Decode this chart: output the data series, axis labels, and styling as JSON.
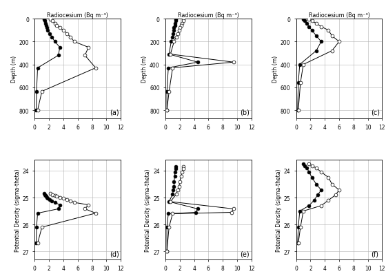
{
  "title_x": "Radiocesium (Bq m⁻³)",
  "ylabel_top": "Depth (m)",
  "ylabel_bot": "Potential Density (sigma-theta)",
  "panels": [
    "(a)",
    "(b)",
    "(c)",
    "(d)",
    "(e)",
    "(f)"
  ],
  "xlim": [
    0,
    12
  ],
  "xticks": [
    0,
    2,
    4,
    6,
    8,
    10,
    12
  ],
  "ylim_depth": [
    0,
    870
  ],
  "yticks_depth": [
    0,
    200,
    400,
    600,
    800
  ],
  "ylim_density": [
    23.6,
    27.3
  ],
  "yticks_density": [
    24,
    25,
    26,
    27
  ],
  "a_cs134_depth": [
    5,
    20,
    40,
    60,
    80,
    100,
    130,
    160,
    200,
    250,
    320,
    430,
    635,
    800
  ],
  "a_cs134_val": [
    1.3,
    1.4,
    1.5,
    1.6,
    1.7,
    1.8,
    2.1,
    2.4,
    2.8,
    3.5,
    3.3,
    0.4,
    0.25,
    0.2
  ],
  "a_cs137_depth": [
    5,
    20,
    40,
    60,
    80,
    100,
    130,
    160,
    200,
    250,
    320,
    430,
    635,
    800
  ],
  "a_cs137_val": [
    2.2,
    2.5,
    2.8,
    3.0,
    3.5,
    4.0,
    4.5,
    5.0,
    5.5,
    7.5,
    7.0,
    8.5,
    1.0,
    0.4
  ],
  "b_cs134_depth": [
    5,
    20,
    40,
    60,
    80,
    100,
    130,
    160,
    200,
    310,
    380,
    430,
    640,
    800
  ],
  "b_cs134_val": [
    1.4,
    1.4,
    1.3,
    1.3,
    1.2,
    1.2,
    1.1,
    1.0,
    0.8,
    0.5,
    4.5,
    0.4,
    0.2,
    0.2
  ],
  "b_cs137_depth": [
    5,
    20,
    40,
    60,
    80,
    100,
    130,
    160,
    200,
    310,
    380,
    430,
    640,
    800
  ],
  "b_cs137_val": [
    2.5,
    2.5,
    2.3,
    2.2,
    2.0,
    1.9,
    1.7,
    1.5,
    1.2,
    0.7,
    9.5,
    1.0,
    0.5,
    0.2
  ],
  "c_cs134_depth": [
    5,
    20,
    40,
    70,
    100,
    150,
    200,
    280,
    400,
    560,
    800
  ],
  "c_cs134_val": [
    1.0,
    1.2,
    1.5,
    1.8,
    2.2,
    2.8,
    3.5,
    2.8,
    0.5,
    0.3,
    0.2
  ],
  "c_cs137_depth": [
    5,
    20,
    40,
    70,
    100,
    150,
    200,
    280,
    400,
    560,
    800
  ],
  "c_cs137_val": [
    1.8,
    2.2,
    2.8,
    3.5,
    4.5,
    5.0,
    6.0,
    5.0,
    1.0,
    0.6,
    0.3
  ],
  "d_cs134_sig": [
    24.85,
    24.9,
    24.93,
    24.96,
    24.99,
    25.02,
    25.07,
    25.12,
    25.18,
    25.27,
    25.42,
    25.58,
    26.1,
    26.7
  ],
  "d_cs134_val": [
    1.3,
    1.4,
    1.5,
    1.6,
    1.7,
    1.8,
    2.1,
    2.4,
    2.8,
    3.5,
    3.3,
    0.4,
    0.25,
    0.2
  ],
  "d_cs137_sig": [
    24.85,
    24.9,
    24.93,
    24.96,
    24.99,
    25.02,
    25.07,
    25.12,
    25.18,
    25.27,
    25.42,
    25.58,
    26.1,
    26.7
  ],
  "d_cs137_val": [
    2.2,
    2.5,
    2.8,
    3.0,
    3.5,
    4.0,
    4.5,
    5.0,
    5.5,
    7.5,
    7.0,
    8.5,
    1.0,
    0.4
  ],
  "e_cs134_sig": [
    23.85,
    23.92,
    24.05,
    24.2,
    24.4,
    24.58,
    24.72,
    24.88,
    25.15,
    25.42,
    25.55,
    25.6,
    26.1,
    27.0
  ],
  "e_cs134_val": [
    1.4,
    1.4,
    1.3,
    1.3,
    1.2,
    1.2,
    1.1,
    1.0,
    0.5,
    4.5,
    4.2,
    0.4,
    0.2,
    0.2
  ],
  "e_cs137_sig": [
    23.85,
    23.92,
    24.05,
    24.2,
    24.4,
    24.58,
    24.72,
    24.88,
    25.15,
    25.42,
    25.55,
    25.6,
    26.1,
    27.0
  ],
  "e_cs137_val": [
    2.5,
    2.5,
    2.3,
    2.2,
    2.0,
    1.9,
    1.7,
    1.5,
    0.7,
    9.5,
    9.2,
    1.0,
    0.5,
    0.2
  ],
  "f_cs134_sig": [
    23.75,
    23.82,
    23.9,
    24.05,
    24.25,
    24.5,
    24.72,
    24.9,
    25.1,
    25.3,
    25.5,
    26.1,
    26.7
  ],
  "f_cs134_val": [
    1.0,
    1.2,
    1.5,
    1.8,
    2.2,
    2.8,
    3.5,
    3.0,
    2.5,
    1.8,
    0.5,
    0.3,
    0.2
  ],
  "f_cs137_sig": [
    23.75,
    23.82,
    23.9,
    24.05,
    24.25,
    24.5,
    24.72,
    24.9,
    25.1,
    25.3,
    25.5,
    26.1,
    26.7
  ],
  "f_cs137_val": [
    1.8,
    2.2,
    2.8,
    3.5,
    4.5,
    5.0,
    6.0,
    5.5,
    4.5,
    3.5,
    1.0,
    0.6,
    0.3
  ]
}
